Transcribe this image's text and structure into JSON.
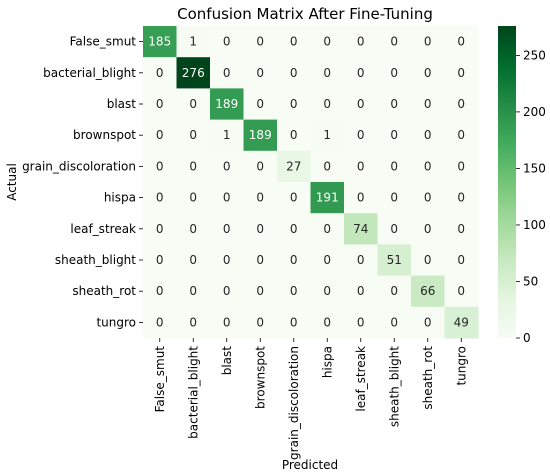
{
  "chart_data": {
    "type": "heatmap",
    "title": "Confusion Matrix After Fine-Tuning",
    "xlabel": "Predicted",
    "ylabel": "Actual",
    "rows": [
      "False_smut",
      "bacterial_blight",
      "blast",
      "brownspot",
      "grain_discoloration",
      "hispa",
      "leaf_streak",
      "sheath_blight",
      "sheath_rot",
      "tungro"
    ],
    "columns": [
      "False_smut",
      "bacterial_blight",
      "blast",
      "brownspot",
      "grain_discoloration",
      "hispa",
      "leaf_streak",
      "sheath_blight",
      "sheath_rot",
      "tungro"
    ],
    "values": [
      [
        185,
        1,
        0,
        0,
        0,
        0,
        0,
        0,
        0,
        0
      ],
      [
        0,
        276,
        0,
        0,
        0,
        0,
        0,
        0,
        0,
        0
      ],
      [
        0,
        0,
        189,
        0,
        0,
        0,
        0,
        0,
        0,
        0
      ],
      [
        0,
        0,
        1,
        189,
        0,
        1,
        0,
        0,
        0,
        0
      ],
      [
        0,
        0,
        0,
        0,
        27,
        0,
        0,
        0,
        0,
        0
      ],
      [
        0,
        0,
        0,
        0,
        0,
        191,
        0,
        0,
        0,
        0
      ],
      [
        0,
        0,
        0,
        0,
        0,
        0,
        74,
        0,
        0,
        0
      ],
      [
        0,
        0,
        0,
        0,
        0,
        0,
        0,
        51,
        0,
        0
      ],
      [
        0,
        0,
        0,
        0,
        0,
        0,
        0,
        0,
        66,
        0
      ],
      [
        0,
        0,
        0,
        0,
        0,
        0,
        0,
        0,
        0,
        49
      ]
    ],
    "colorbar": {
      "min": 0,
      "max": 276,
      "ticks": [
        0,
        50,
        100,
        150,
        200,
        250
      ],
      "colormap": "Greens",
      "low_color": "#f7fcf5",
      "high_color": "#00441b"
    },
    "annotations": true,
    "grid": false
  }
}
